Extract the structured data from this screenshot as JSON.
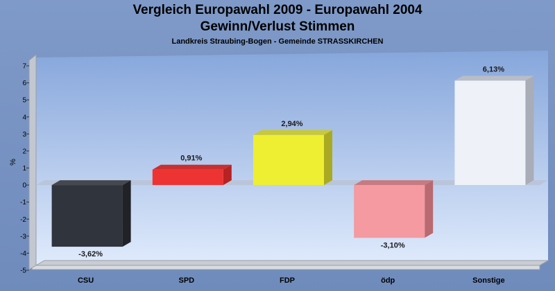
{
  "chart_data": {
    "type": "bar",
    "title": "Vergleich Europawahl 2009 - Europawahl 2004",
    "title2": "Gewinn/Verlust Stimmen",
    "subtitle": "Landkreis Straubing-Bogen - Gemeinde STRASSKIRCHEN",
    "ylabel": "%",
    "xlabel": "",
    "ylim": [
      -5,
      7
    ],
    "yticks": [
      "7",
      "6",
      "5",
      "4",
      "3",
      "2",
      "1",
      "0",
      "-1",
      "-2",
      "-3",
      "-4",
      "-5"
    ],
    "categories": [
      "CSU",
      "SPD",
      "FDP",
      "ödp",
      "Sonstige"
    ],
    "values": [
      -3.62,
      0.91,
      2.94,
      -3.1,
      6.13
    ],
    "labels": [
      "-3,62%",
      "0,91%",
      "2,94%",
      "-3,10%",
      "6,13%"
    ],
    "colors": [
      "#30343d",
      "#ee3333",
      "#eeee33",
      "#f49aa0",
      "#eef1f8"
    ],
    "side_colors": [
      "#202227",
      "#b82222",
      "#aaaa22",
      "#b86a70",
      "#a8adb8"
    ],
    "top_colors": [
      "#45484f",
      "#c83030",
      "#c8c838",
      "#c77a80",
      "#b8bdc6"
    ],
    "grid": false,
    "legend": "none"
  }
}
